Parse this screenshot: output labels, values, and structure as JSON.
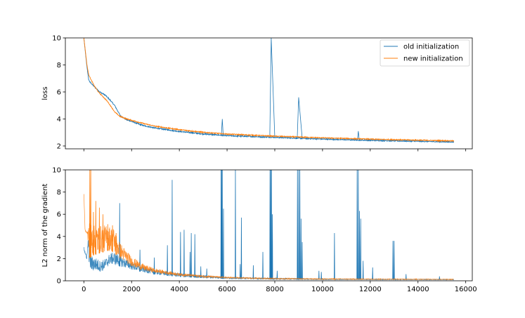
{
  "colors": {
    "old": "#1f77b4",
    "new": "#ff7f0e"
  },
  "chart_data": [
    {
      "type": "line",
      "title": "",
      "xlabel": "",
      "ylabel": "loss",
      "xlim": [
        -775,
        16275
      ],
      "ylim": [
        1.79,
        10
      ],
      "xticks": [
        0,
        2000,
        4000,
        6000,
        8000,
        10000,
        12000,
        14000,
        16000
      ],
      "yticks": [
        2,
        4,
        6,
        8,
        10
      ],
      "ytick_labels": [
        "2",
        "4",
        "6",
        "8",
        "10"
      ],
      "grid": false,
      "legend": {
        "placement": "top-right",
        "entries": [
          "old initialization",
          "new initialization"
        ]
      },
      "series": [
        {
          "name": "old initialization",
          "envelope_x_lo_hi": [
            [
              0,
              10,
              10
            ],
            [
              120,
              8,
              8
            ],
            [
              200,
              6.9,
              6.95
            ],
            [
              250,
              6.7,
              6.78
            ],
            [
              400,
              6.42,
              6.5
            ],
            [
              660,
              5.97,
              6.05
            ],
            [
              900,
              5.72,
              5.8
            ],
            [
              1100,
              5.36,
              5.44
            ],
            [
              1290,
              4.96,
              5.04
            ],
            [
              1540,
              4.17,
              4.25
            ],
            [
              1800,
              3.9,
              3.98
            ],
            [
              2500,
              3.46,
              3.55
            ],
            [
              3000,
              3.28,
              3.37
            ],
            [
              4000,
              3.03,
              3.12
            ],
            [
              5000,
              2.85,
              2.94
            ],
            [
              6000,
              2.72,
              2.81
            ],
            [
              8000,
              2.6,
              2.68
            ],
            [
              10000,
              2.47,
              2.55
            ],
            [
              12000,
              2.38,
              2.45
            ],
            [
              15500,
              2.26,
              2.33
            ]
          ],
          "spikes_x_peak": [
            [
              5800,
              4.0
            ],
            [
              7850,
              10.0
            ],
            [
              9000,
              5.6
            ],
            [
              11500,
              3.1
            ]
          ]
        },
        {
          "name": "new initialization",
          "envelope_x_lo_hi": [
            [
              0,
              10,
              10
            ],
            [
              130,
              8,
              8
            ],
            [
              200,
              7.28,
              7.32
            ],
            [
              300,
              6.88,
              6.94
            ],
            [
              450,
              6.38,
              6.44
            ],
            [
              610,
              5.97,
              6.03
            ],
            [
              990,
              5.27,
              5.33
            ],
            [
              1300,
              4.47,
              4.53
            ],
            [
              1500,
              4.17,
              4.24
            ],
            [
              1800,
              3.96,
              4.04
            ],
            [
              2500,
              3.62,
              3.7
            ],
            [
              3000,
              3.42,
              3.5
            ],
            [
              4000,
              3.17,
              3.25
            ],
            [
              5000,
              2.97,
              3.05
            ],
            [
              6000,
              2.85,
              2.92
            ],
            [
              8000,
              2.69,
              2.76
            ],
            [
              10000,
              2.57,
              2.64
            ],
            [
              12000,
              2.47,
              2.54
            ],
            [
              15500,
              2.34,
              2.41
            ]
          ],
          "spikes_x_peak": []
        }
      ]
    },
    {
      "type": "line",
      "title": "",
      "xlabel": "",
      "ylabel": "L2 norm of the gradient",
      "xlim": [
        -775,
        16275
      ],
      "ylim": [
        0,
        10
      ],
      "xticks": [
        0,
        2000,
        4000,
        6000,
        8000,
        10000,
        12000,
        14000,
        16000
      ],
      "xtick_labels": [
        "0",
        "2000",
        "4000",
        "6000",
        "8000",
        "10000",
        "12000",
        "14000",
        "16000"
      ],
      "yticks": [
        0,
        2,
        4,
        6,
        8,
        10
      ],
      "ytick_labels": [
        "0",
        "2",
        "4",
        "6",
        "8",
        "10"
      ],
      "grid": false,
      "series": [
        {
          "name": "old initialization",
          "envelope_x_lo_hi": [
            [
              0,
              2.8,
              3.1
            ],
            [
              80,
              2.2,
              2.6
            ],
            [
              120,
              1.9,
              2.0
            ],
            [
              180,
              3.3,
              3.8
            ],
            [
              220,
              1.5,
              3.0
            ],
            [
              300,
              0.8,
              2.3
            ],
            [
              500,
              0.9,
              2.1
            ],
            [
              700,
              0.8,
              1.8
            ],
            [
              900,
              1.0,
              2.0
            ],
            [
              1100,
              1.5,
              2.5
            ],
            [
              1300,
              1.4,
              2.6
            ],
            [
              1500,
              1.3,
              2.3
            ],
            [
              2000,
              1.0,
              1.7
            ],
            [
              2500,
              0.75,
              1.3
            ],
            [
              3000,
              0.55,
              1.0
            ],
            [
              4000,
              0.35,
              0.7
            ],
            [
              5000,
              0.25,
              0.5
            ],
            [
              6000,
              0.18,
              0.35
            ],
            [
              8000,
              0.12,
              0.25
            ],
            [
              10000,
              0.1,
              0.18
            ],
            [
              15500,
              0.08,
              0.14
            ]
          ],
          "spikes_x_peak": [
            [
              1500,
              7.0
            ],
            [
              2350,
              2.8
            ],
            [
              2950,
              2.1
            ],
            [
              3700,
              9.1
            ],
            [
              3500,
              3.2
            ],
            [
              4050,
              4.4
            ],
            [
              4200,
              4.6
            ],
            [
              4450,
              2.6
            ],
            [
              4500,
              4.3
            ],
            [
              4650,
              4.2
            ],
            [
              4900,
              1.3
            ],
            [
              5150,
              1.1
            ],
            [
              5750,
              10
            ],
            [
              5780,
              10
            ],
            [
              5800,
              10
            ],
            [
              5850,
              6.5
            ],
            [
              6350,
              10
            ],
            [
              6550,
              1.5
            ],
            [
              6600,
              5.7
            ],
            [
              7100,
              1.4
            ],
            [
              7500,
              2.6
            ],
            [
              7800,
              10
            ],
            [
              7830,
              10
            ],
            [
              7860,
              10
            ],
            [
              7900,
              6.0
            ],
            [
              8100,
              0.9
            ],
            [
              8950,
              10
            ],
            [
              9000,
              10
            ],
            [
              9050,
              10
            ],
            [
              9100,
              5.6
            ],
            [
              9150,
              3.5
            ],
            [
              9850,
              0.9
            ],
            [
              9950,
              0.8
            ],
            [
              10500,
              4.3
            ],
            [
              11450,
              10
            ],
            [
              11500,
              10
            ],
            [
              11550,
              6.3
            ],
            [
              11600,
              5.6
            ],
            [
              11700,
              1.8
            ],
            [
              12100,
              1.2
            ],
            [
              12950,
              3.6
            ],
            [
              13000,
              3.6
            ],
            [
              13500,
              0.6
            ],
            [
              14900,
              0.4
            ]
          ]
        },
        {
          "name": "new initialization",
          "envelope_x_lo_hi": [
            [
              0,
              7.8,
              8.0
            ],
            [
              50,
              4.5,
              4.6
            ],
            [
              150,
              4.2,
              4.4
            ],
            [
              200,
              2.0,
              5.5
            ],
            [
              400,
              2.3,
              5.0
            ],
            [
              700,
              2.5,
              5.0
            ],
            [
              1000,
              2.7,
              5.0
            ],
            [
              1250,
              2.6,
              4.8
            ],
            [
              1500,
              2.0,
              3.5
            ],
            [
              2000,
              1.3,
              2.2
            ],
            [
              2500,
              0.9,
              1.5
            ],
            [
              3000,
              0.7,
              1.1
            ],
            [
              4000,
              0.45,
              0.7
            ],
            [
              5000,
              0.3,
              0.5
            ],
            [
              6000,
              0.22,
              0.35
            ],
            [
              8000,
              0.15,
              0.24
            ],
            [
              10000,
              0.12,
              0.2
            ],
            [
              15500,
              0.1,
              0.16
            ]
          ],
          "spikes_x_peak": [
            [
              250,
              10
            ],
            [
              290,
              10
            ],
            [
              400,
              6.2
            ],
            [
              500,
              7.2
            ],
            [
              650,
              6.6
            ],
            [
              800,
              6.0
            ],
            [
              1000,
              5.1
            ],
            [
              1200,
              5.0
            ],
            [
              1350,
              4.3
            ]
          ]
        }
      ]
    }
  ]
}
